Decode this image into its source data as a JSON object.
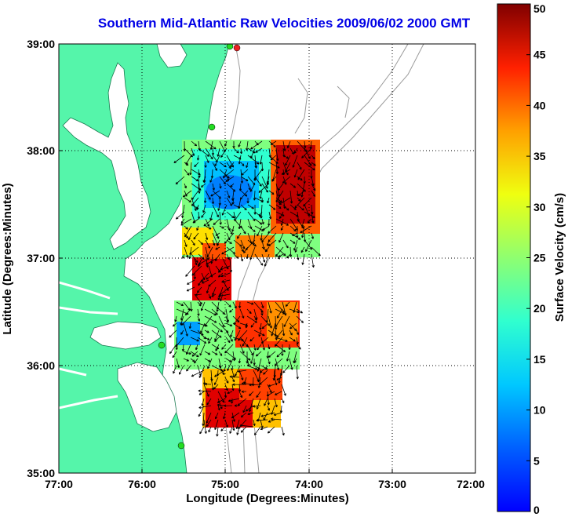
{
  "title": "Southern Mid-Atlantic Raw Velocities 2009/06/02 2000 GMT",
  "map": {
    "xlabel": "Longitude (Degrees:Minutes)",
    "ylabel": "Latitude (Degrees:Minutes)",
    "lon_ticks": [
      "77:00",
      "76:00",
      "75:00",
      "74:00",
      "73:00",
      "72:00"
    ],
    "lat_ticks": [
      "39:00",
      "38:00",
      "37:00",
      "36:00",
      "35:00"
    ],
    "lon_range": [
      -77,
      -72
    ],
    "lat_range": [
      35,
      39
    ],
    "grid": true,
    "colors": {
      "land": "#55f5aa",
      "water": "#ffffff",
      "bathymetry": "#9a9a9a",
      "vectors": "#000000",
      "station": "#22dd22",
      "station_active": "#ee2222"
    }
  },
  "colorbar": {
    "label": "Surface Velocity (cm/s)",
    "ticks": [
      "0",
      "5",
      "10",
      "15",
      "20",
      "25",
      "30",
      "35",
      "40",
      "45",
      "50"
    ],
    "min": 0,
    "max": 50,
    "colormap": "jet"
  }
}
